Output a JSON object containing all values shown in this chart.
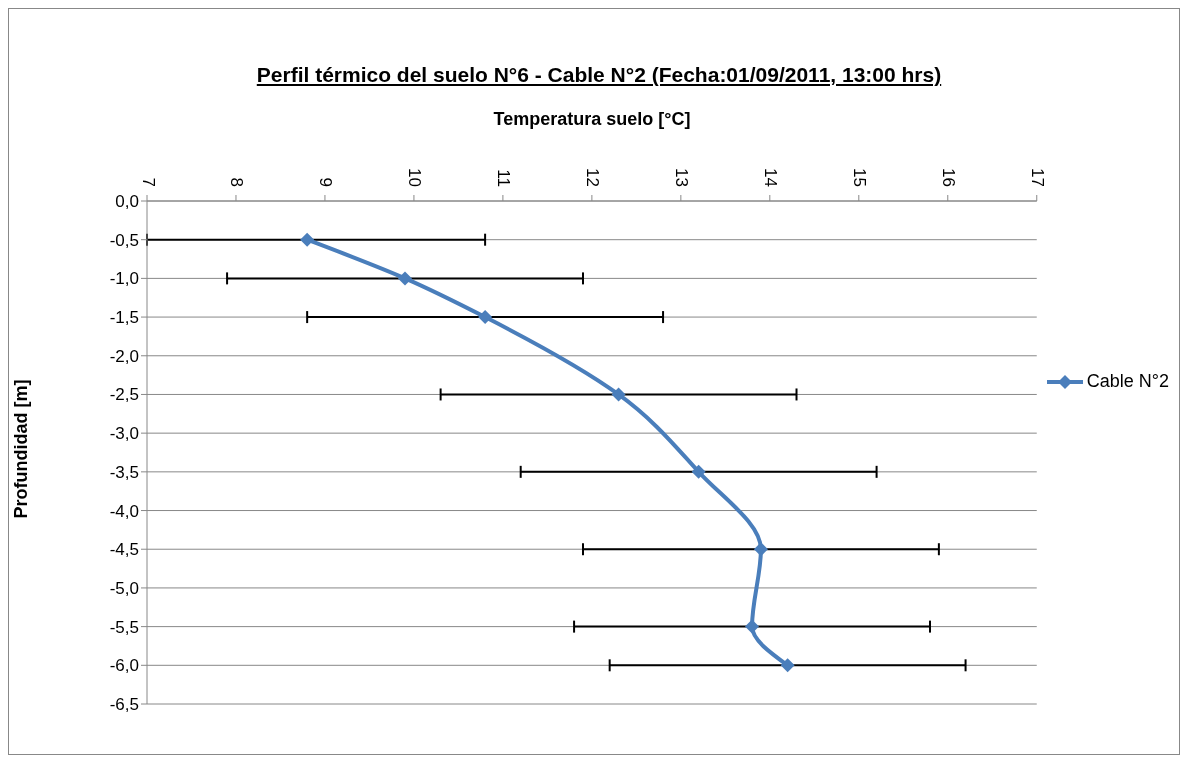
{
  "chart_data": {
    "type": "line",
    "title": "Perfil térmico del suelo N°6 - Cable N°2 (Fecha:01/09/2011, 13:00 hrs)",
    "xlabel": "Temperatura suelo [°C]",
    "ylabel": "Profundidad [m]",
    "series": [
      {
        "name": "Cable N°2",
        "color": "#4a7ebb",
        "x": [
          8.8,
          9.9,
          10.8,
          12.3,
          13.2,
          13.9,
          13.8,
          14.2
        ],
        "values": [
          -0.5,
          -1.0,
          -1.5,
          -2.5,
          -3.5,
          -4.5,
          -5.5,
          -6.0
        ],
        "xerrors": [
          [
            7,
            10.8
          ],
          2,
          2,
          2,
          2,
          2,
          2,
          2
        ]
      }
    ],
    "xlim": [
      7,
      17
    ],
    "xticks": [
      7,
      8,
      9,
      10,
      11,
      12,
      13,
      14,
      15,
      16,
      17
    ],
    "ylim": [
      -6.5,
      0
    ],
    "yticks": [
      {
        "value": 0,
        "label": "0,0"
      },
      {
        "value": -0.5,
        "label": "-0,5"
      },
      {
        "value": -1,
        "label": "-1,0"
      },
      {
        "value": -1.5,
        "label": "-1,5"
      },
      {
        "value": -2,
        "label": "-2,0"
      },
      {
        "value": -2.5,
        "label": "-2,5"
      },
      {
        "value": -3,
        "label": "-3,0"
      },
      {
        "value": -3.5,
        "label": "-3,5"
      },
      {
        "value": -4,
        "label": "-4,0"
      },
      {
        "value": -4.5,
        "label": "-4,5"
      },
      {
        "value": -5,
        "label": "-5,0"
      },
      {
        "value": -5.5,
        "label": "-5,5"
      },
      {
        "value": -6,
        "label": "-6,0"
      },
      {
        "value": -6.5,
        "label": "-6,5"
      }
    ],
    "grid": "y",
    "legend": "right",
    "marker": "diamond",
    "line_style": "solid"
  }
}
